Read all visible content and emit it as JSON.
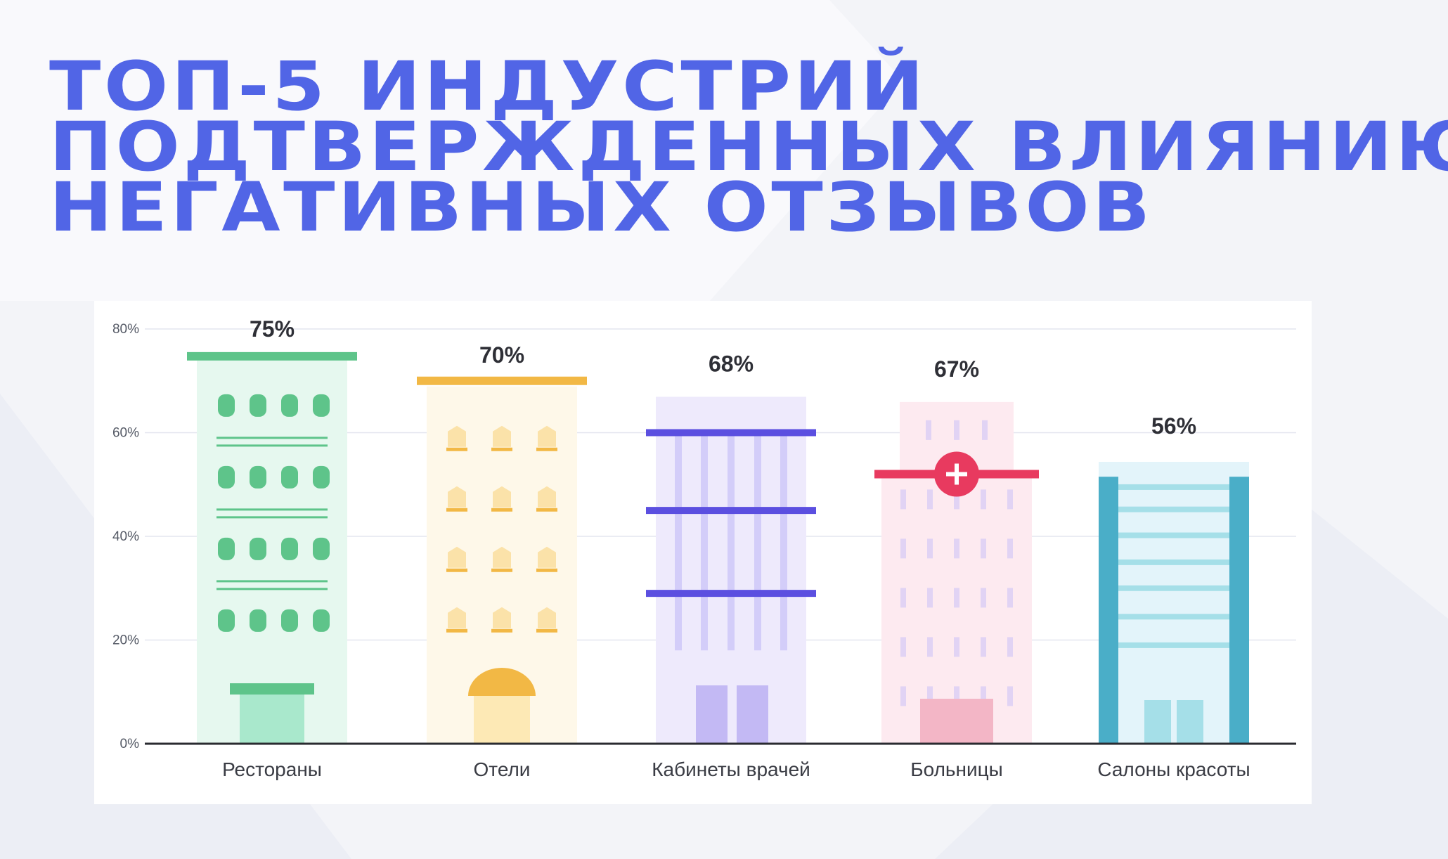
{
  "title": {
    "lines": [
      "ТОП-5 ИНДУСТРИЙ",
      "ПОДТВЕРЖДЕННЫХ ВЛИЯНИЮ",
      "НЕГАТИВНЫХ ОТЗЫВОВ"
    ]
  },
  "colors": {
    "title": "#5165e6",
    "restaurants": "#5ec48a",
    "hotels": "#f2b845",
    "doctors": "#5b4fe0",
    "hospitals": "#e83a5f",
    "beauty": "#4aaec8"
  },
  "chart_data": {
    "type": "bar",
    "categories": [
      "Рестораны",
      "Отели",
      "Кабинеты врачей",
      "Больницы",
      "Салоны красоты"
    ],
    "values": [
      75,
      70,
      68,
      67,
      56
    ],
    "value_labels": [
      "75%",
      "70%",
      "68%",
      "67%",
      "56%"
    ],
    "ylim": [
      0,
      80
    ],
    "yticks": [
      0,
      20,
      40,
      60,
      80
    ],
    "ytick_labels": [
      "0%",
      "20%",
      "40%",
      "60%",
      "80%"
    ],
    "grid": true,
    "bar_style": "buildings",
    "title": "",
    "xlabel": "",
    "ylabel": ""
  }
}
